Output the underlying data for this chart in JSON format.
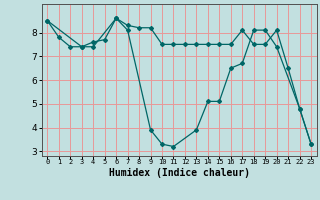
{
  "title": "",
  "xlabel": "Humidex (Indice chaleur)",
  "ylabel": "",
  "bg_color": "#c2e0e0",
  "grid_color": "#e89898",
  "line_color": "#006666",
  "xlim": [
    -0.5,
    23.5
  ],
  "ylim": [
    2.8,
    9.2
  ],
  "xticks": [
    0,
    1,
    2,
    3,
    4,
    5,
    6,
    7,
    8,
    9,
    10,
    11,
    12,
    13,
    14,
    15,
    16,
    17,
    18,
    19,
    20,
    21,
    22,
    23
  ],
  "yticks": [
    3,
    4,
    5,
    6,
    7,
    8
  ],
  "line1_x": [
    0,
    1,
    2,
    3,
    4,
    5,
    6,
    7,
    8,
    9,
    10,
    11,
    12,
    13,
    14,
    15,
    16,
    17,
    18,
    19,
    20,
    21,
    22,
    23
  ],
  "line1_y": [
    8.5,
    7.8,
    7.4,
    7.4,
    7.6,
    7.7,
    8.6,
    8.3,
    8.2,
    8.2,
    7.5,
    7.5,
    7.5,
    7.5,
    7.5,
    7.5,
    7.5,
    8.1,
    7.5,
    7.5,
    8.1,
    6.5,
    4.8,
    3.3
  ],
  "line2_x": [
    0,
    3,
    4,
    6,
    7,
    9,
    10,
    11,
    13,
    14,
    15,
    16,
    17,
    18,
    19,
    20,
    22,
    23
  ],
  "line2_y": [
    8.5,
    7.4,
    7.4,
    8.6,
    8.1,
    3.9,
    3.3,
    3.2,
    3.9,
    5.1,
    5.1,
    6.5,
    6.7,
    8.1,
    8.1,
    7.4,
    4.8,
    3.3
  ]
}
